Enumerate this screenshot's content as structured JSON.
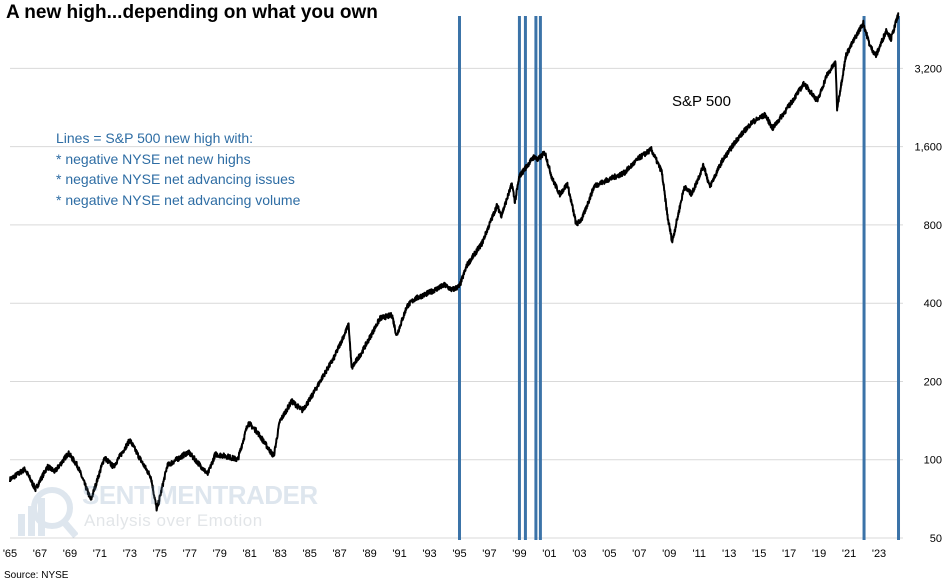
{
  "title": "A new high...depending on what you own",
  "source": "Source: NYSE",
  "annotation_lines": [
    "Lines = S&P 500 new high with:",
    "* negative NYSE net new highs",
    "* negative NYSE net advancing issues",
    "* negative NYSE net advancing volume"
  ],
  "watermark": {
    "brand": "SENTIMENTRADER",
    "tagline": "Analysis over Emotion"
  },
  "colors": {
    "line": "#000000",
    "vertical_lines": "#3b73a8",
    "annotation": "#2e6da4",
    "grid": "#d9d9d9"
  },
  "chart_data": {
    "type": "line",
    "title": "A new high...depending on what you own",
    "y_scale": "log",
    "ylim": [
      50,
      5000
    ],
    "xlim": [
      1965,
      2024.6
    ],
    "grid": "horizontal",
    "y_ticks": [
      50,
      100,
      200,
      400,
      800,
      1600,
      3200
    ],
    "y_tick_labels": [
      "50",
      "100",
      "200",
      "400",
      "800",
      "1,600",
      "3,200"
    ],
    "x_ticks": [
      1965,
      1967,
      1969,
      1971,
      1973,
      1975,
      1977,
      1979,
      1981,
      1983,
      1985,
      1987,
      1989,
      1991,
      1993,
      1995,
      1997,
      1999,
      2001,
      2003,
      2005,
      2007,
      2009,
      2011,
      2013,
      2015,
      2017,
      2019,
      2021,
      2023
    ],
    "x_tick_labels": [
      "'65",
      "'67",
      "'69",
      "'71",
      "'73",
      "'75",
      "'77",
      "'79",
      "'81",
      "'83",
      "'85",
      "'87",
      "'89",
      "'91",
      "'93",
      "'95",
      "'97",
      "'99",
      "'01",
      "'03",
      "'05",
      "'07",
      "'09",
      "'11",
      "'13",
      "'15",
      "'17",
      "'19",
      "'21",
      "'23"
    ],
    "series": [
      {
        "name": "S&P 500",
        "points": [
          [
            1965.0,
            84
          ],
          [
            1966.0,
            92
          ],
          [
            1966.7,
            77
          ],
          [
            1967.5,
            94
          ],
          [
            1968.0,
            90
          ],
          [
            1968.9,
            106
          ],
          [
            1969.5,
            95
          ],
          [
            1970.4,
            70
          ],
          [
            1971.3,
            102
          ],
          [
            1971.9,
            94
          ],
          [
            1973.0,
            119
          ],
          [
            1973.8,
            98
          ],
          [
            1974.4,
            86
          ],
          [
            1974.8,
            64
          ],
          [
            1975.5,
            95
          ],
          [
            1976.9,
            107
          ],
          [
            1977.5,
            98
          ],
          [
            1978.2,
            88
          ],
          [
            1978.7,
            105
          ],
          [
            1979.5,
            103
          ],
          [
            1980.2,
            100
          ],
          [
            1980.9,
            139
          ],
          [
            1981.5,
            128
          ],
          [
            1982.6,
            103
          ],
          [
            1983.0,
            140
          ],
          [
            1983.8,
            168
          ],
          [
            1984.5,
            155
          ],
          [
            1985.0,
            170
          ],
          [
            1985.9,
            210
          ],
          [
            1986.6,
            245
          ],
          [
            1987.6,
            330
          ],
          [
            1987.8,
            225
          ],
          [
            1988.5,
            260
          ],
          [
            1989.7,
            350
          ],
          [
            1990.5,
            360
          ],
          [
            1990.8,
            300
          ],
          [
            1991.5,
            390
          ],
          [
            1992.0,
            415
          ],
          [
            1993.0,
            440
          ],
          [
            1994.0,
            470
          ],
          [
            1994.5,
            450
          ],
          [
            1995.0,
            465
          ],
          [
            1995.5,
            560
          ],
          [
            1996.5,
            680
          ],
          [
            1997.5,
            950
          ],
          [
            1997.8,
            870
          ],
          [
            1998.5,
            1150
          ],
          [
            1998.7,
            980
          ],
          [
            1999.0,
            1230
          ],
          [
            1999.5,
            1350
          ],
          [
            2000.0,
            1470
          ],
          [
            2000.2,
            1420
          ],
          [
            2000.7,
            1520
          ],
          [
            2001.2,
            1200
          ],
          [
            2001.7,
            1050
          ],
          [
            2002.2,
            1150
          ],
          [
            2002.8,
            800
          ],
          [
            2003.2,
            850
          ],
          [
            2004.0,
            1130
          ],
          [
            2005.0,
            1200
          ],
          [
            2006.0,
            1270
          ],
          [
            2007.0,
            1450
          ],
          [
            2007.8,
            1560
          ],
          [
            2008.5,
            1280
          ],
          [
            2008.9,
            850
          ],
          [
            2009.2,
            690
          ],
          [
            2010.0,
            1120
          ],
          [
            2010.5,
            1050
          ],
          [
            2011.3,
            1360
          ],
          [
            2011.7,
            1120
          ],
          [
            2012.5,
            1400
          ],
          [
            2013.5,
            1700
          ],
          [
            2014.5,
            1980
          ],
          [
            2015.4,
            2120
          ],
          [
            2015.9,
            1880
          ],
          [
            2017.0,
            2300
          ],
          [
            2018.0,
            2800
          ],
          [
            2018.9,
            2400
          ],
          [
            2019.5,
            3000
          ],
          [
            2020.1,
            3380
          ],
          [
            2020.2,
            2240
          ],
          [
            2020.8,
            3600
          ],
          [
            2021.5,
            4300
          ],
          [
            2021.95,
            4780
          ],
          [
            2022.4,
            3900
          ],
          [
            2022.8,
            3580
          ],
          [
            2023.5,
            4500
          ],
          [
            2023.8,
            4150
          ],
          [
            2024.3,
            5200
          ]
        ]
      }
    ],
    "vertical_lines_x": [
      1995.0,
      1999.0,
      1999.4,
      2000.1,
      2000.4,
      2022.0,
      2024.3
    ],
    "annotations": [
      "S&P 500"
    ]
  }
}
